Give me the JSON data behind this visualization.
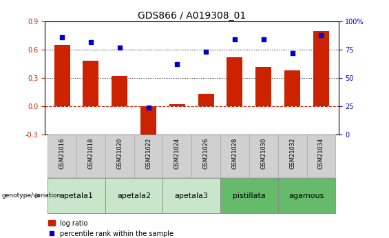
{
  "title": "GDS866 / A019308_01",
  "samples": [
    "GSM21016",
    "GSM21018",
    "GSM21020",
    "GSM21022",
    "GSM21024",
    "GSM21026",
    "GSM21028",
    "GSM21030",
    "GSM21032",
    "GSM21034"
  ],
  "log_ratio": [
    0.65,
    0.48,
    0.32,
    -0.37,
    0.02,
    0.13,
    0.52,
    0.42,
    0.38,
    0.8
  ],
  "percentile_rank": [
    86,
    82,
    77,
    24,
    62,
    73,
    84,
    84,
    72,
    88
  ],
  "groups": [
    {
      "name": "apetala1",
      "indices": [
        0,
        1
      ],
      "color": "#c8e6c9"
    },
    {
      "name": "apetala2",
      "indices": [
        2,
        3
      ],
      "color": "#c8e6c9"
    },
    {
      "name": "apetala3",
      "indices": [
        4,
        5
      ],
      "color": "#c8e6c9"
    },
    {
      "name": "pistillata",
      "indices": [
        6,
        7
      ],
      "color": "#66bb6a"
    },
    {
      "name": "agamous",
      "indices": [
        8,
        9
      ],
      "color": "#66bb6a"
    }
  ],
  "ylim_left": [
    -0.3,
    0.9
  ],
  "ylim_right": [
    0,
    100
  ],
  "yticks_left": [
    -0.3,
    0.0,
    0.3,
    0.6,
    0.9
  ],
  "yticks_right": [
    0,
    25,
    50,
    75,
    100
  ],
  "ytick_labels_right": [
    "0",
    "25",
    "50",
    "75",
    "100%"
  ],
  "hlines": [
    0.3,
    0.6
  ],
  "bar_color": "#cc2200",
  "scatter_color": "#0000cc",
  "zero_line_color": "#cc2200",
  "bar_width": 0.55,
  "legend_label_bar": "log ratio",
  "legend_label_scatter": "percentile rank within the sample",
  "genotype_label": "genotype/variation",
  "sample_box_color": "#d0d0d0",
  "left_ytick_fontsize": 7,
  "right_ytick_fontsize": 7,
  "title_fontsize": 10,
  "sample_fontsize": 6,
  "group_fontsize": 8,
  "legend_fontsize": 7
}
